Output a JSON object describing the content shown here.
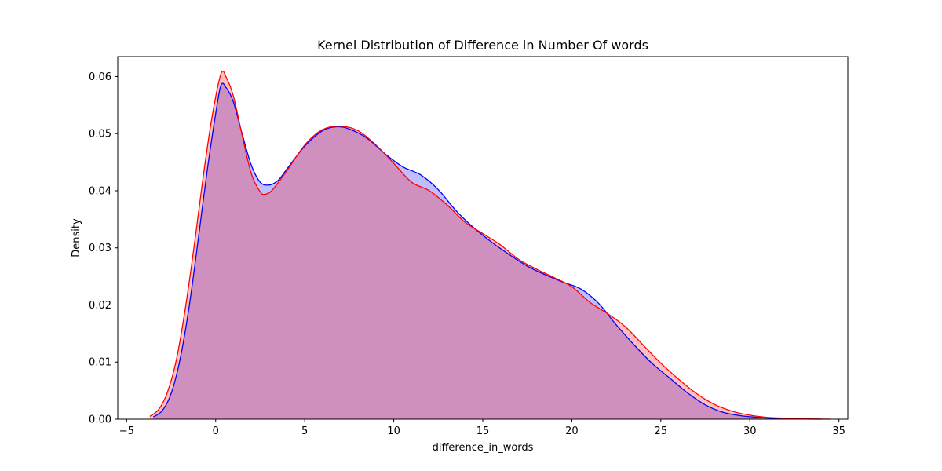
{
  "chart_data": {
    "type": "area",
    "title": "Kernel Distribution of Difference in Number Of words",
    "xlabel": "difference_in_words",
    "ylabel": "Density",
    "xlim": [
      -5.5,
      35.5
    ],
    "ylim": [
      0,
      0.0635
    ],
    "x_ticks": [
      -5,
      0,
      5,
      10,
      15,
      20,
      25,
      30,
      35
    ],
    "x_tick_labels": [
      "−5",
      "0",
      "5",
      "10",
      "15",
      "20",
      "25",
      "30",
      "35"
    ],
    "y_ticks": [
      0,
      0.01,
      0.02,
      0.03,
      0.04,
      0.05,
      0.06
    ],
    "y_tick_labels": [
      "0.00",
      "0.01",
      "0.02",
      "0.03",
      "0.04",
      "0.05",
      "0.06"
    ],
    "grid": false,
    "series": [
      {
        "color": "#0000ff",
        "fill": "#0000ff",
        "points": [
          [
            -3.5,
            0.0004
          ],
          [
            -3.0,
            0.0015
          ],
          [
            -2.5,
            0.0045
          ],
          [
            -2.0,
            0.0105
          ],
          [
            -1.5,
            0.0195
          ],
          [
            -1.0,
            0.031
          ],
          [
            -0.5,
            0.043
          ],
          [
            0.0,
            0.0535
          ],
          [
            0.3,
            0.0585
          ],
          [
            0.6,
            0.058
          ],
          [
            1.0,
            0.0555
          ],
          [
            1.5,
            0.0498
          ],
          [
            2.0,
            0.0445
          ],
          [
            2.5,
            0.0415
          ],
          [
            3.0,
            0.041
          ],
          [
            3.5,
            0.0418
          ],
          [
            4.0,
            0.0438
          ],
          [
            5.0,
            0.0478
          ],
          [
            6.0,
            0.0505
          ],
          [
            6.8,
            0.0512
          ],
          [
            7.5,
            0.0508
          ],
          [
            8.5,
            0.0492
          ],
          [
            9.5,
            0.0465
          ],
          [
            10.5,
            0.0442
          ],
          [
            11.5,
            0.0428
          ],
          [
            12.5,
            0.0402
          ],
          [
            13.5,
            0.0365
          ],
          [
            14.5,
            0.0335
          ],
          [
            15.5,
            0.031
          ],
          [
            16.5,
            0.0288
          ],
          [
            17.5,
            0.0268
          ],
          [
            18.5,
            0.0253
          ],
          [
            19.5,
            0.024
          ],
          [
            20.5,
            0.0228
          ],
          [
            21.5,
            0.0203
          ],
          [
            22.5,
            0.0165
          ],
          [
            23.5,
            0.013
          ],
          [
            24.5,
            0.0098
          ],
          [
            25.5,
            0.0072
          ],
          [
            26.5,
            0.0046
          ],
          [
            27.5,
            0.0025
          ],
          [
            28.5,
            0.0012
          ],
          [
            29.5,
            0.0006
          ],
          [
            30.5,
            0.0003
          ],
          [
            31.5,
            0.0001
          ],
          [
            32.5,
            5e-05
          ],
          [
            34.0,
            0.0
          ]
        ]
      },
      {
        "color": "#ff0000",
        "fill": "#ff0000",
        "points": [
          [
            -3.7,
            0.0005
          ],
          [
            -3.2,
            0.0017
          ],
          [
            -2.7,
            0.0048
          ],
          [
            -2.2,
            0.0105
          ],
          [
            -1.7,
            0.0195
          ],
          [
            -1.2,
            0.0305
          ],
          [
            -0.7,
            0.0425
          ],
          [
            -0.2,
            0.053
          ],
          [
            0.3,
            0.0605
          ],
          [
            0.6,
            0.0598
          ],
          [
            1.0,
            0.0565
          ],
          [
            1.5,
            0.0495
          ],
          [
            2.0,
            0.043
          ],
          [
            2.5,
            0.0398
          ],
          [
            2.8,
            0.0394
          ],
          [
            3.2,
            0.0402
          ],
          [
            4.0,
            0.0435
          ],
          [
            5.0,
            0.048
          ],
          [
            6.0,
            0.0507
          ],
          [
            7.0,
            0.0513
          ],
          [
            8.0,
            0.0505
          ],
          [
            9.0,
            0.048
          ],
          [
            10.0,
            0.0448
          ],
          [
            11.0,
            0.0415
          ],
          [
            12.0,
            0.04
          ],
          [
            13.0,
            0.0375
          ],
          [
            14.0,
            0.0345
          ],
          [
            15.0,
            0.0325
          ],
          [
            16.0,
            0.0305
          ],
          [
            17.0,
            0.028
          ],
          [
            18.0,
            0.0263
          ],
          [
            19.0,
            0.0248
          ],
          [
            20.0,
            0.0232
          ],
          [
            21.0,
            0.0205
          ],
          [
            22.0,
            0.0185
          ],
          [
            23.0,
            0.0162
          ],
          [
            24.0,
            0.013
          ],
          [
            25.0,
            0.0098
          ],
          [
            26.0,
            0.007
          ],
          [
            27.0,
            0.0045
          ],
          [
            28.0,
            0.0026
          ],
          [
            29.0,
            0.0014
          ],
          [
            30.0,
            0.0007
          ],
          [
            31.0,
            0.0003
          ],
          [
            32.0,
            0.00015
          ],
          [
            33.0,
            5e-05
          ],
          [
            34.5,
            0.0
          ]
        ]
      }
    ]
  }
}
